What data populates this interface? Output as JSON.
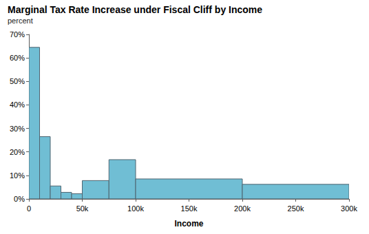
{
  "chart_data": {
    "type": "histogram",
    "title": "Marginal Tax Rate Increase under Fiscal Cliff by Income",
    "subtitle": "percent",
    "x_label": "Income",
    "bins": [
      0,
      10000,
      20000,
      30000,
      40000,
      50000,
      75000,
      100000,
      200000,
      300000
    ],
    "values": [
      64.5,
      26.5,
      5.5,
      2.8,
      2.2,
      7.8,
      16.7,
      8.5,
      6.2
    ],
    "color": "#70bed4",
    "xlim": [
      0,
      300000
    ],
    "ylim": [
      0,
      70
    ],
    "xticks": [
      0,
      {
        "value": 50000,
        "label": "50k"
      },
      {
        "value": 100000,
        "label": "100k"
      },
      {
        "value": 150000,
        "label": "150k"
      },
      {
        "value": 200000,
        "label": "200k"
      },
      {
        "value": 250000,
        "label": "250k"
      },
      {
        "value": 300000,
        "label": "300k"
      }
    ],
    "yticks": [
      {
        "value": 0,
        "label": "0%"
      },
      {
        "value": 10,
        "label": "10%"
      },
      {
        "value": 20,
        "label": "20%"
      },
      {
        "value": 30,
        "label": "30%"
      },
      {
        "value": 40,
        "label": "40%"
      },
      {
        "value": 50,
        "label": "50%"
      },
      {
        "value": 60,
        "label": "60%"
      },
      {
        "value": 70,
        "label": "70%"
      }
    ],
    "grid": false
  }
}
